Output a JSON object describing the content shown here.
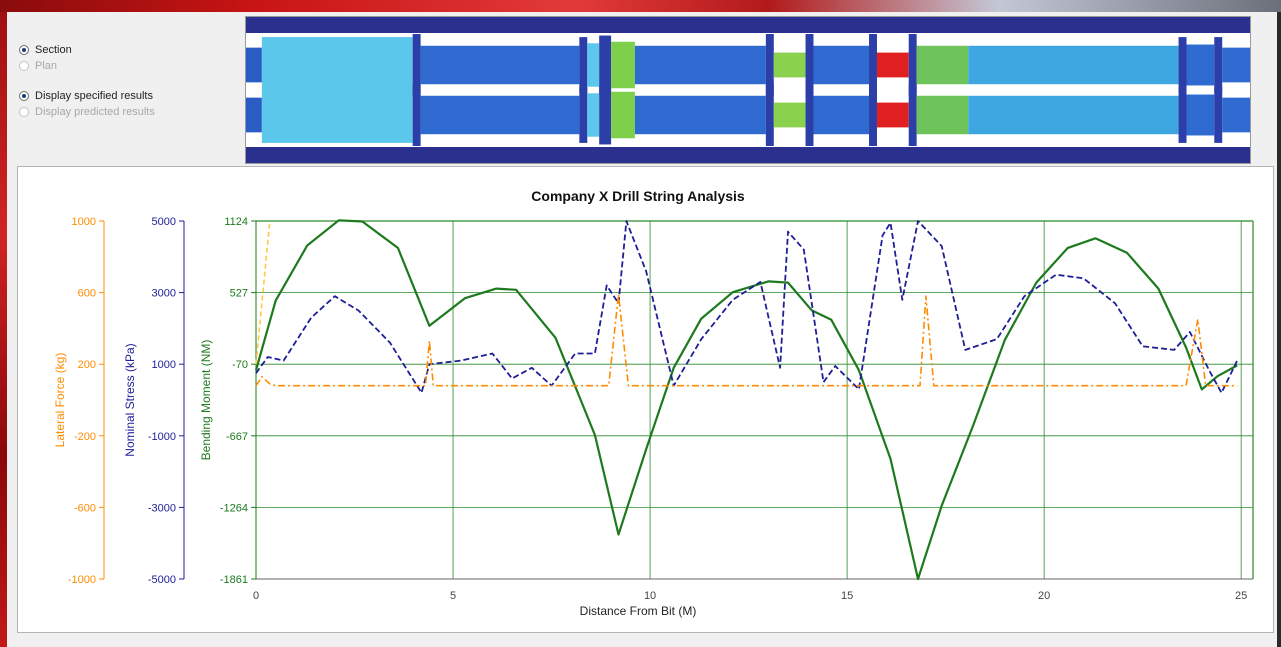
{
  "options": {
    "view_section": "Section",
    "view_plan": "Plan",
    "display_specified": "Display specified results",
    "display_predicted": "Display predicted results"
  },
  "colors": {
    "lateral": "#ff8c00",
    "stress": "#1e1e96",
    "moment": "#1e7a1e",
    "grid": "#2a8a2a"
  },
  "section_view": {
    "segments": [
      {
        "from": 0.0,
        "to": 0.4,
        "color": "#2a5cc4",
        "od": 0.56
      },
      {
        "from": 0.4,
        "to": 4.2,
        "color": "#5bc7ea",
        "od": 0.9
      },
      {
        "from": 4.2,
        "to": 4.4,
        "color": "#2c3ea8",
        "od": 1.0
      },
      {
        "from": 4.4,
        "to": 8.4,
        "color": "#2e6ad0",
        "od": 0.62
      },
      {
        "from": 8.4,
        "to": 8.6,
        "color": "#2c3ea8",
        "od": 0.9
      },
      {
        "from": 8.6,
        "to": 8.9,
        "color": "#5bc7ea",
        "od": 0.7
      },
      {
        "from": 8.9,
        "to": 9.2,
        "color": "#2c3ea8",
        "od": 0.95
      },
      {
        "from": 9.2,
        "to": 9.8,
        "color": "#7ed04a",
        "od": 0.75
      },
      {
        "from": 9.8,
        "to": 13.1,
        "color": "#2e6ad0",
        "od": 0.62
      },
      {
        "from": 13.1,
        "to": 13.3,
        "color": "#2c3ea8",
        "od": 1.0
      },
      {
        "from": 13.3,
        "to": 14.1,
        "color": "#8ad24e",
        "od": 0.4
      },
      {
        "from": 14.1,
        "to": 14.3,
        "color": "#2c3ea8",
        "od": 1.0
      },
      {
        "from": 14.3,
        "to": 15.7,
        "color": "#2e6ad0",
        "od": 0.62
      },
      {
        "from": 15.7,
        "to": 15.9,
        "color": "#2c3ea8",
        "od": 1.0
      },
      {
        "from": 15.9,
        "to": 16.7,
        "color": "#e02020",
        "od": 0.4
      },
      {
        "from": 16.7,
        "to": 16.9,
        "color": "#2c3ea8",
        "od": 1.0
      },
      {
        "from": 16.9,
        "to": 18.2,
        "color": "#6ec45a",
        "od": 0.62
      },
      {
        "from": 18.2,
        "to": 23.5,
        "color": "#3ea6e0",
        "od": 0.62
      },
      {
        "from": 23.5,
        "to": 23.7,
        "color": "#2c3ea8",
        "od": 0.9
      },
      {
        "from": 23.7,
        "to": 24.4,
        "color": "#2e6ad0",
        "od": 0.66
      },
      {
        "from": 24.4,
        "to": 24.6,
        "color": "#2c3ea8",
        "od": 0.9
      },
      {
        "from": 24.6,
        "to": 25.3,
        "color": "#2e6ad0",
        "od": 0.56
      }
    ]
  },
  "chart_data": {
    "type": "line",
    "title": "Company X Drill String Analysis",
    "xlabel": "Distance From Bit (M)",
    "xlim": [
      0,
      25.3
    ],
    "x_ticks": [
      "0",
      "5",
      "10",
      "15",
      "20",
      "25"
    ],
    "grid": true,
    "axes": [
      {
        "id": "lateral",
        "label": "Lateral Force (kg)",
        "ylim": [
          -1000,
          1000
        ],
        "ticks": [
          "1000",
          "600",
          "200",
          "-200",
          "-600",
          "-1000"
        ]
      },
      {
        "id": "stress",
        "label": "Nominal Stress (kPa)",
        "ylim": [
          -5000,
          5000
        ],
        "ticks": [
          "5000",
          "3000",
          "1000",
          "-1000",
          "-3000",
          "-5000"
        ]
      },
      {
        "id": "moment",
        "label": "Bending Moment (NM)",
        "ylim": [
          -1861,
          1124
        ],
        "ticks": [
          "1124",
          "527",
          "-70",
          "-667",
          "-1264",
          "-1861"
        ]
      }
    ],
    "series": [
      {
        "axis": "moment",
        "style": "solid",
        "x": [
          0,
          0.5,
          1.3,
          2.1,
          2.7,
          3.6,
          4.4,
          5.3,
          6.1,
          6.6,
          7.6,
          8.6,
          9.2,
          9.9,
          10.6,
          11.3,
          12.1,
          13.0,
          13.5,
          14.1,
          14.6,
          15.3,
          16.1,
          16.8,
          17.4,
          18.2,
          19.0,
          19.8,
          20.6,
          21.3,
          22.1,
          22.9,
          23.6,
          24.0,
          24.4,
          24.9
        ],
        "y": [
          -120,
          460,
          920,
          1130,
          1120,
          900,
          250,
          480,
          560,
          550,
          150,
          -660,
          -1490,
          -780,
          -100,
          310,
          530,
          620,
          610,
          380,
          300,
          -120,
          -860,
          -1861,
          -1250,
          -580,
          130,
          610,
          900,
          980,
          860,
          560,
          70,
          -280,
          -170,
          -80
        ]
      },
      {
        "axis": "stress",
        "style": "dashed",
        "x": [
          0,
          0.3,
          0.7,
          1.4,
          2.0,
          2.6,
          3.4,
          4.2,
          4.4,
          5.2,
          6.0,
          6.5,
          7.0,
          7.5,
          8.1,
          8.6,
          8.9,
          9.2,
          9.4,
          9.9,
          10.6,
          11.3,
          12.1,
          12.8,
          13.3,
          13.5,
          13.9,
          14.4,
          14.7,
          15.3,
          15.9,
          16.1,
          16.4,
          16.8,
          17.4,
          18.0,
          18.8,
          19.5,
          20.3,
          21.0,
          21.8,
          22.5,
          23.3,
          23.7,
          24.2,
          24.5,
          24.9
        ],
        "y": [
          750,
          1200,
          1100,
          2300,
          2900,
          2500,
          1600,
          200,
          1000,
          1100,
          1300,
          600,
          900,
          400,
          1300,
          1300,
          3200,
          2700,
          5000,
          3600,
          400,
          1700,
          2800,
          3300,
          900,
          4700,
          4200,
          500,
          950,
          300,
          4600,
          4950,
          2800,
          5000,
          4300,
          1400,
          1700,
          2900,
          3500,
          3400,
          2700,
          1500,
          1400,
          1900,
          800,
          200,
          1100
        ]
      },
      {
        "axis": "lateral",
        "style": "dashdot",
        "x": [
          0,
          0.15,
          0.35,
          0.5,
          4.3,
          4.4,
          4.5,
          8.95,
          9.2,
          9.45,
          16.85,
          17.0,
          17.2,
          23.6,
          23.9,
          24.1,
          24.9
        ],
        "y": [
          80,
          130,
          90,
          80,
          80,
          330,
          80,
          80,
          590,
          80,
          80,
          580,
          80,
          80,
          450,
          80,
          80
        ]
      },
      {
        "axis": "lateral",
        "style": "dashed-light",
        "x": [
          0,
          0.35
        ],
        "y": [
          200,
          1000
        ]
      }
    ]
  }
}
